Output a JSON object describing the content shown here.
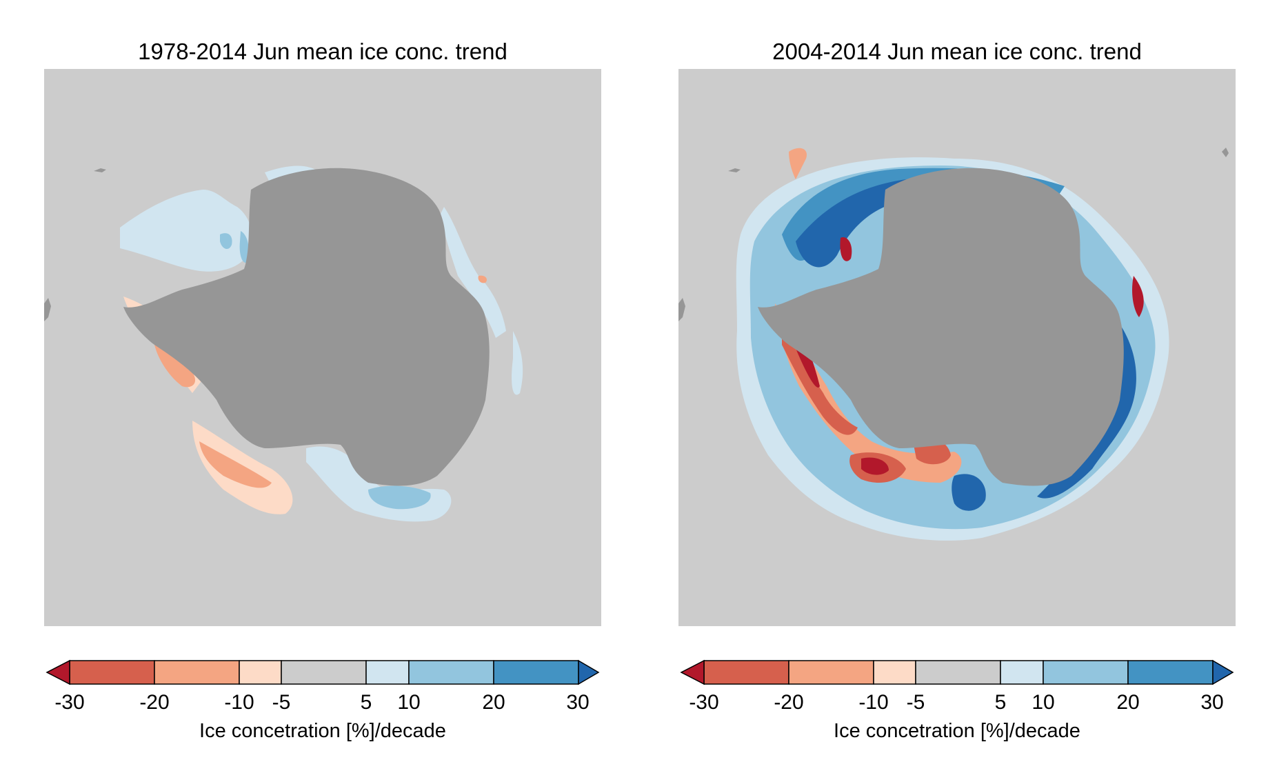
{
  "figure": {
    "panels": [
      {
        "title": "1978-2014 Jun mean ice conc. trend",
        "colorbar_label": "Ice concetration [%]/decade"
      },
      {
        "title": "2004-2014 Jun mean ice conc. trend",
        "colorbar_label": "Ice concetration [%]/decade"
      }
    ],
    "colorbar": {
      "ticks": [
        "-30",
        "-20",
        "-10",
        "-5",
        "5",
        "10",
        "20",
        "30"
      ],
      "tick_values": [
        -30,
        -20,
        -10,
        -5,
        5,
        10,
        20,
        30
      ],
      "bins": [
        {
          "from": -30,
          "to": -20,
          "color": "#d6604d"
        },
        {
          "from": -20,
          "to": -10,
          "color": "#f4a582"
        },
        {
          "from": -10,
          "to": -5,
          "color": "#fddbc7"
        },
        {
          "from": -5,
          "to": 5,
          "color": "#cccccc"
        },
        {
          "from": 5,
          "to": 10,
          "color": "#d1e5f0"
        },
        {
          "from": 10,
          "to": 20,
          "color": "#92c5de"
        },
        {
          "from": 20,
          "to": 30,
          "color": "#4393c3"
        }
      ],
      "extend_low_color": "#b2182b",
      "extend_high_color": "#2166ac"
    },
    "map_colors": {
      "ocean_background": "#cccccc",
      "land": "#969696"
    }
  }
}
